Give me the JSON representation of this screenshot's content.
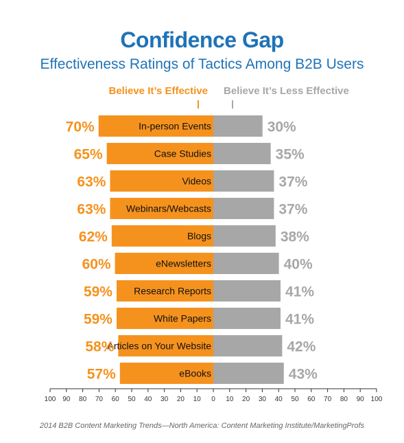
{
  "colors": {
    "effective": "#f5921e",
    "less_effective": "#a7a7a7",
    "title": "#1f73b7"
  },
  "legend": {
    "effective": "Believe It’s Effective",
    "less_effective": "Believe It’s Less Effective"
  },
  "source": "2014 B2B Content Marketing Trends—North America: Content Marketing Institute/MarketingProfs",
  "chart_data": {
    "type": "bar",
    "title": "Confidence Gap",
    "subtitle": "Effectiveness Ratings of Tactics Among B2B Users",
    "categories": [
      "In-person Events",
      "Case Studies",
      "Videos",
      "Webinars/Webcasts",
      "Blogs",
      "eNewsletters",
      "Research Reports",
      "White Papers",
      "Articles on Your Website",
      "eBooks"
    ],
    "series": [
      {
        "name": "Believe It’s Effective",
        "values": [
          70,
          65,
          63,
          63,
          62,
          60,
          59,
          59,
          58,
          57
        ]
      },
      {
        "name": "Believe It’s Less Effective",
        "values": [
          30,
          35,
          37,
          37,
          38,
          40,
          41,
          41,
          42,
          43
        ]
      }
    ],
    "value_labels": {
      "effective": [
        "70%",
        "65%",
        "63%",
        "63%",
        "62%",
        "60%",
        "59%",
        "59%",
        "58%",
        "57%"
      ],
      "less_effective": [
        "30%",
        "35%",
        "37%",
        "37%",
        "38%",
        "40%",
        "41%",
        "41%",
        "42%",
        "43%"
      ]
    },
    "xaxis_ticks": [
      "100",
      "90",
      "80",
      "70",
      "60",
      "50",
      "40",
      "30",
      "20",
      "10",
      "0",
      "10",
      "20",
      "30",
      "40",
      "50",
      "60",
      "70",
      "80",
      "90",
      "100"
    ],
    "xlim": [
      -100,
      100
    ],
    "grid": false,
    "legend_position": "top"
  }
}
